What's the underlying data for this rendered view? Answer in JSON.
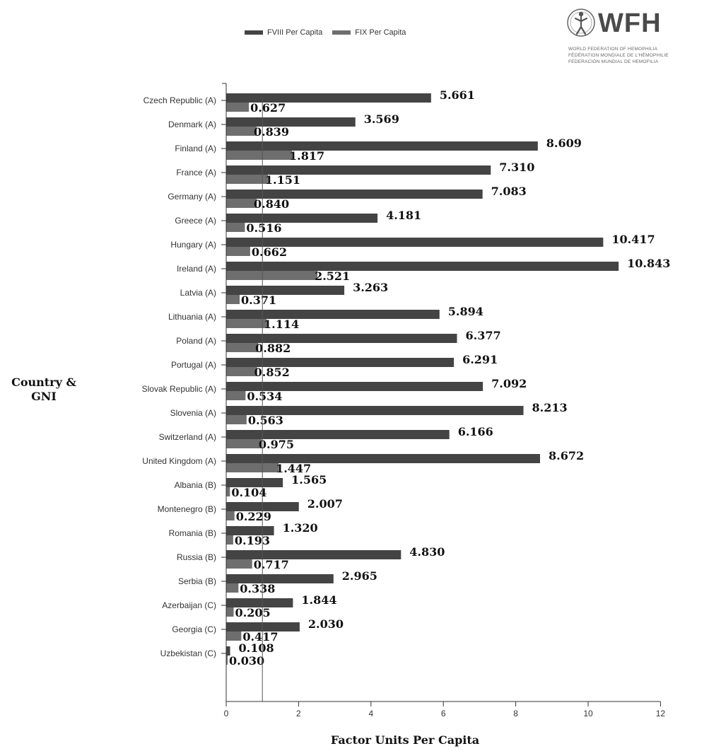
{
  "legend": [
    {
      "label": "FVIII Per Capita",
      "color": "#444444"
    },
    {
      "label": "FIX Per Capita",
      "color": "#6e6e6e"
    }
  ],
  "logo": {
    "name": "WFH",
    "lines": [
      "WORLD FEDERATION OF HEMOPHILIA",
      "FÉDÉRATION MONDIALE DE L'HÉMOPHILIE",
      "FEDERACIÓN MUNDIAL DE HEMOFILIA"
    ]
  },
  "chart_data": {
    "type": "bar",
    "orientation": "horizontal",
    "title": "",
    "xlabel": "Factor Units Per Capita",
    "ylabel": "Country & GNI",
    "xlim": [
      0,
      12
    ],
    "xticks": [
      0,
      2,
      4,
      6,
      8,
      10,
      12
    ],
    "reference_line": 1,
    "legend_position": "top",
    "categories": [
      "Czech Republic (A)",
      "Denmark (A)",
      "Finland (A)",
      "France (A)",
      "Germany (A)",
      "Greece (A)",
      "Hungary (A)",
      "Ireland (A)",
      "Latvia (A)",
      "Lithuania (A)",
      "Poland (A)",
      "Portugal (A)",
      "Slovak Republic (A)",
      "Slovenia (A)",
      "Switzerland (A)",
      "United Kingdom (A)",
      "Albania (B)",
      "Montenegro (B)",
      "Romania (B)",
      "Russia (B)",
      "Serbia (B)",
      "Azerbaijan (C)",
      "Georgia (C)",
      "Uzbekistan (C)"
    ],
    "series": [
      {
        "name": "FVIII Per Capita",
        "color": "#444444",
        "values": [
          5.661,
          3.569,
          8.609,
          7.31,
          7.083,
          4.181,
          10.417,
          10.843,
          3.263,
          5.894,
          6.377,
          6.291,
          7.092,
          8.213,
          6.166,
          8.672,
          1.565,
          2.007,
          1.32,
          4.83,
          2.965,
          1.844,
          2.03,
          0.108
        ],
        "labels": [
          "5.661",
          "3.569",
          "8.609",
          "7.310",
          "7.083",
          "4.181",
          "10.417",
          "10.843",
          "3.263",
          "5.894",
          "6.377",
          "6.291",
          "7.092",
          "8.213",
          "6.166",
          "8.672",
          "1.565",
          "2.007",
          "1.320",
          "4.830",
          "2.965",
          "1.844",
          "2.030",
          "0.108"
        ]
      },
      {
        "name": "FIX Per Capita",
        "color": "#6e6e6e",
        "values": [
          0.627,
          0.839,
          1.817,
          1.151,
          0.84,
          0.516,
          0.662,
          2.521,
          0.371,
          1.114,
          0.882,
          0.852,
          0.534,
          0.563,
          0.975,
          1.447,
          0.104,
          0.229,
          0.193,
          0.717,
          0.338,
          0.205,
          0.417,
          0.03
        ],
        "labels": [
          "0.627",
          "0.839",
          "1.817",
          "1.151",
          "0.840",
          "0.516",
          "0.662",
          "2.521",
          "0.371",
          "1.114",
          "0.882",
          "0.852",
          "0.534",
          "0.563",
          "0.975",
          "1.447",
          "0.104",
          "0.229",
          "0.193",
          "0.717",
          "0.338",
          "0.205",
          "0.417",
          "0.030"
        ]
      }
    ]
  }
}
